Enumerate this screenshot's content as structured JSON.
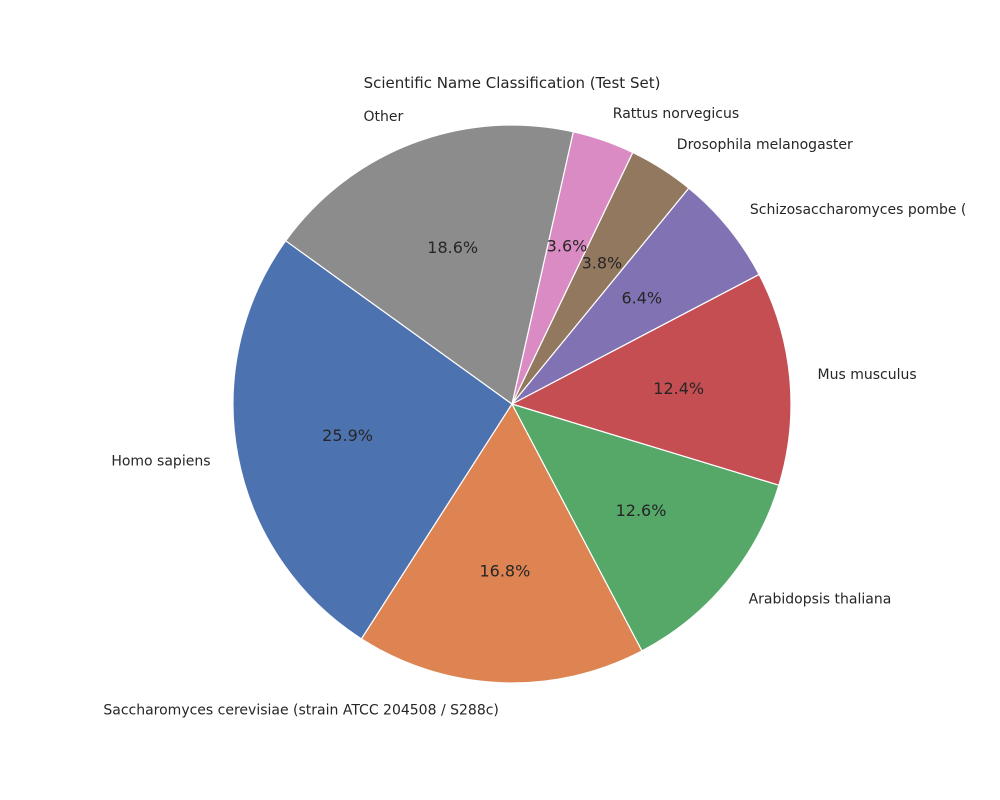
{
  "chart_data": {
    "type": "pie",
    "title": "Scientific Name Classification (Test Set)",
    "slices": [
      {
        "label": "Homo sapiens",
        "value": 25.9,
        "pct_label": "25.9%",
        "color": "#4c72b0"
      },
      {
        "label": "Saccharomyces cerevisiae (strain ATCC 204508 / S288c)",
        "value": 16.8,
        "pct_label": "16.8%",
        "color": "#dd8452"
      },
      {
        "label": "Arabidopsis thaliana",
        "value": 12.6,
        "pct_label": "12.6%",
        "color": "#55a868"
      },
      {
        "label": "Mus musculus",
        "value": 12.4,
        "pct_label": "12.4%",
        "color": "#c44e52"
      },
      {
        "label": "Schizosaccharomyces pombe (",
        "value": 6.4,
        "pct_label": "6.4%",
        "color": "#8172b3"
      },
      {
        "label": "Drosophila melanogaster",
        "value": 3.8,
        "pct_label": "3.8%",
        "color": "#937860"
      },
      {
        "label": "Rattus norvegicus",
        "value": 3.6,
        "pct_label": "3.6%",
        "color": "#da8bc3"
      },
      {
        "label": "Other",
        "value": 18.6,
        "pct_label": "18.6%",
        "color": "#8c8c8c"
      }
    ],
    "legend": "none"
  }
}
